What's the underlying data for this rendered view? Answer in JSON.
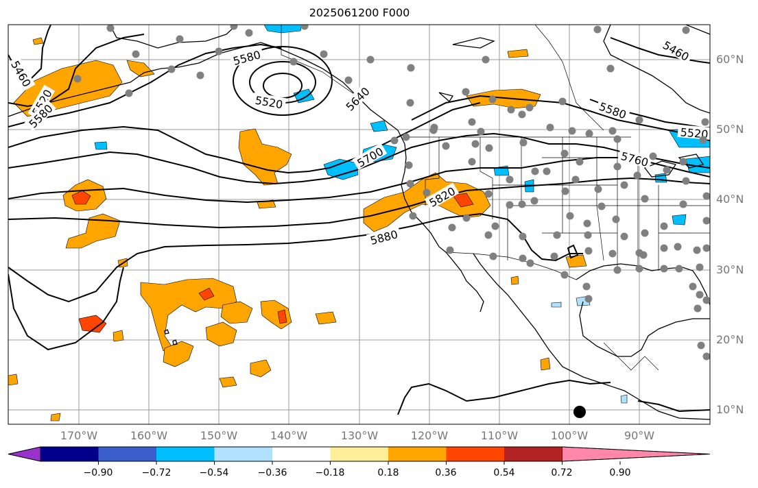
{
  "title": "2025061200 F000",
  "latitude_labels": [
    "60°N",
    "50°N",
    "40°N",
    "30°N",
    "20°N",
    "10°N"
  ],
  "longitude_labels": [
    "170°W",
    "160°W",
    "150°W",
    "140°W",
    "130°W",
    "120°W",
    "110°W",
    "100°W",
    "90°W"
  ],
  "contour_labels": [
    "5460",
    "5520",
    "5580",
    "5640",
    "5700",
    "5760",
    "5820",
    "5880"
  ],
  "colorbar": {
    "tick_labels": [
      "−0.90",
      "−0.72",
      "−0.54",
      "−0.36",
      "−0.18",
      "0.18",
      "0.36",
      "0.54",
      "0.72",
      "0.90"
    ],
    "colors": [
      "#9932cc",
      "#00008b",
      "#3a5fcd",
      "#00bfff",
      "#b0e2ff",
      "#ffffff",
      "#ffee99",
      "#ffa500",
      "#ff4500",
      "#b22222",
      "#ff88aa"
    ]
  },
  "colors": {
    "contour_line": "#000000",
    "gridline": "#999999",
    "station_marker": "#808080",
    "positive_fill": "#ffa500",
    "strong_positive_fill": "#ff4500",
    "negative_fill": "#00bfff",
    "weak_negative_fill": "#b0e2ff",
    "axis_label": "#777777"
  }
}
